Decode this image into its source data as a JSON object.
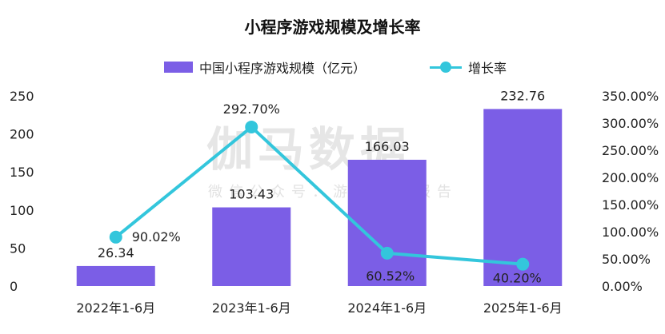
{
  "title": "小程序游戏规模及增长率",
  "legend": {
    "bar_label": "中国小程序游戏规模（亿元）",
    "line_label": "增长率"
  },
  "watermark": {
    "main": "伽马数据",
    "sub": "微信公众号：游戏产业报告"
  },
  "colors": {
    "bar": "#7b5ee6",
    "line": "#33c6dc",
    "axis_text": "#222222"
  },
  "chart_data": {
    "type": "bar",
    "title": "小程序游戏规模及增长率",
    "categories": [
      "2022年1-6月",
      "2023年1-6月",
      "2024年1-6月",
      "2025年1-6月"
    ],
    "series": [
      {
        "name": "中国小程序游戏规模（亿元）",
        "type": "bar",
        "axis": "left",
        "values": [
          26.34,
          103.43,
          166.03,
          232.76
        ],
        "labels": [
          "26.34",
          "103.43",
          "166.03",
          "232.76"
        ]
      },
      {
        "name": "增长率",
        "type": "line",
        "axis": "right",
        "values": [
          90.02,
          292.7,
          60.52,
          40.2
        ],
        "labels": [
          "90.02%",
          "292.70%",
          "60.52%",
          "40.20%"
        ]
      }
    ],
    "y_left": {
      "lim": [
        0,
        250
      ],
      "ticks": [
        0,
        50,
        100,
        150,
        200,
        250
      ],
      "tick_labels": [
        "0",
        "50",
        "100",
        "150",
        "200",
        "250"
      ]
    },
    "y_right": {
      "lim": [
        0,
        350
      ],
      "ticks": [
        0,
        50,
        100,
        150,
        200,
        250,
        300,
        350
      ],
      "tick_labels": [
        "0.00%",
        "50.00%",
        "100.00%",
        "150.00%",
        "200.00%",
        "250.00%",
        "300.00%",
        "350.00%"
      ]
    },
    "grid": false,
    "legend_position": "top-center"
  }
}
